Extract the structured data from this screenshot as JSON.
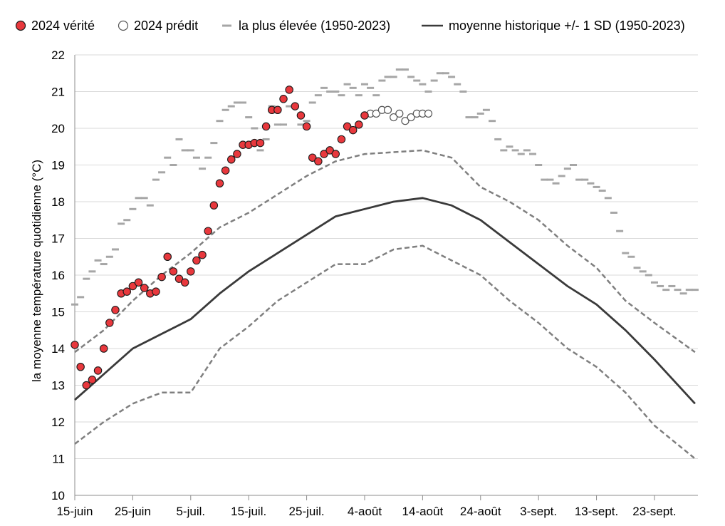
{
  "chart_data": {
    "type": "line",
    "title": "",
    "xlabel": "",
    "ylabel": "la moyenne température quotidienne (°C)",
    "ylim": [
      10,
      22
    ],
    "yticks": [
      10,
      11,
      12,
      13,
      14,
      15,
      16,
      17,
      18,
      19,
      20,
      21,
      22
    ],
    "x_start_date": "2024-06-15",
    "x_end_date": "2024-09-30",
    "x_ticks": [
      {
        "date": "2024-06-15",
        "label": "15-juin"
      },
      {
        "date": "2024-06-25",
        "label": "25-juin"
      },
      {
        "date": "2024-07-05",
        "label": "5-juil."
      },
      {
        "date": "2024-07-15",
        "label": "15-juil."
      },
      {
        "date": "2024-07-25",
        "label": "25-juil."
      },
      {
        "date": "2024-08-04",
        "label": "4-août"
      },
      {
        "date": "2024-08-14",
        "label": "14-août"
      },
      {
        "date": "2024-08-24",
        "label": "24-août"
      },
      {
        "date": "2024-09-03",
        "label": "3-sept."
      },
      {
        "date": "2024-09-13",
        "label": "13-sept."
      },
      {
        "date": "2024-09-23",
        "label": "23-sept."
      }
    ],
    "legend": {
      "position": "top",
      "entries": [
        {
          "key": "truth",
          "label": "2024 vérité"
        },
        {
          "key": "predicted",
          "label": "2024 prédit"
        },
        {
          "key": "highest",
          "label": "la plus élevée (1950-2023)"
        },
        {
          "key": "mean",
          "label": "moyenne historique +/- 1 SD (1950-2023)"
        }
      ]
    },
    "colors": {
      "truth_fill": "#e8383d",
      "truth_edge": "#1a1a1a",
      "predicted_edge": "#555555",
      "highest": "#a6a6a6",
      "mean": "#3a3a3a",
      "sd": "#7f7f7f",
      "grid": "#d9d9d9"
    },
    "series": [
      {
        "key": "truth",
        "name": "2024 vérité",
        "style": "markers-filled",
        "x": [
          "2024-06-15",
          "2024-06-16",
          "2024-06-17",
          "2024-06-18",
          "2024-06-19",
          "2024-06-20",
          "2024-06-21",
          "2024-06-22",
          "2024-06-23",
          "2024-06-24",
          "2024-06-25",
          "2024-06-26",
          "2024-06-27",
          "2024-06-28",
          "2024-06-29",
          "2024-06-30",
          "2024-07-01",
          "2024-07-02",
          "2024-07-03",
          "2024-07-04",
          "2024-07-05",
          "2024-07-06",
          "2024-07-07",
          "2024-07-08",
          "2024-07-09",
          "2024-07-10",
          "2024-07-11",
          "2024-07-12",
          "2024-07-13",
          "2024-07-14",
          "2024-07-15",
          "2024-07-16",
          "2024-07-17",
          "2024-07-18",
          "2024-07-19",
          "2024-07-20",
          "2024-07-21",
          "2024-07-22",
          "2024-07-23",
          "2024-07-24",
          "2024-07-25",
          "2024-07-26",
          "2024-07-27",
          "2024-07-28",
          "2024-07-29",
          "2024-07-30",
          "2024-07-31",
          "2024-08-01",
          "2024-08-02",
          "2024-08-03",
          "2024-08-04"
        ],
        "values": [
          14.1,
          13.5,
          13.0,
          13.15,
          13.4,
          14.0,
          14.7,
          15.05,
          15.5,
          15.55,
          15.7,
          15.8,
          15.65,
          15.5,
          15.55,
          15.95,
          16.5,
          16.1,
          15.9,
          15.8,
          16.1,
          16.4,
          16.55,
          17.2,
          17.9,
          18.5,
          18.85,
          19.15,
          19.3,
          19.55,
          19.55,
          19.6,
          19.6,
          20.05,
          20.5,
          20.5,
          20.8,
          21.05,
          20.6,
          20.35,
          20.05,
          19.2,
          19.1,
          19.3,
          19.4,
          19.3,
          19.7,
          20.05,
          19.95,
          20.1,
          20.35
        ]
      },
      {
        "key": "predicted",
        "name": "2024 prédit",
        "style": "markers-open",
        "x": [
          "2024-08-05",
          "2024-08-06",
          "2024-08-07",
          "2024-08-08",
          "2024-08-09",
          "2024-08-10",
          "2024-08-11",
          "2024-08-12",
          "2024-08-13",
          "2024-08-14",
          "2024-08-15"
        ],
        "values": [
          20.4,
          20.4,
          20.5,
          20.5,
          20.3,
          20.4,
          20.2,
          20.3,
          20.4,
          20.4,
          20.4
        ]
      },
      {
        "key": "highest",
        "name": "la plus élevée (1950-2023)",
        "style": "dashes",
        "x": [
          "2024-06-15",
          "2024-06-16",
          "2024-06-17",
          "2024-06-18",
          "2024-06-19",
          "2024-06-20",
          "2024-06-21",
          "2024-06-22",
          "2024-06-23",
          "2024-06-24",
          "2024-06-25",
          "2024-06-26",
          "2024-06-27",
          "2024-06-28",
          "2024-06-29",
          "2024-06-30",
          "2024-07-01",
          "2024-07-02",
          "2024-07-03",
          "2024-07-04",
          "2024-07-05",
          "2024-07-06",
          "2024-07-07",
          "2024-07-08",
          "2024-07-09",
          "2024-07-10",
          "2024-07-11",
          "2024-07-12",
          "2024-07-13",
          "2024-07-14",
          "2024-07-15",
          "2024-07-16",
          "2024-07-17",
          "2024-07-18",
          "2024-07-19",
          "2024-07-20",
          "2024-07-21",
          "2024-07-22",
          "2024-07-23",
          "2024-07-24",
          "2024-07-25",
          "2024-07-26",
          "2024-07-27",
          "2024-07-28",
          "2024-07-29",
          "2024-07-30",
          "2024-07-31",
          "2024-08-01",
          "2024-08-02",
          "2024-08-03",
          "2024-08-04",
          "2024-08-05",
          "2024-08-06",
          "2024-08-07",
          "2024-08-08",
          "2024-08-09",
          "2024-08-10",
          "2024-08-11",
          "2024-08-12",
          "2024-08-13",
          "2024-08-14",
          "2024-08-15",
          "2024-08-16",
          "2024-08-17",
          "2024-08-18",
          "2024-08-19",
          "2024-08-20",
          "2024-08-21",
          "2024-08-22",
          "2024-08-23",
          "2024-08-24",
          "2024-08-25",
          "2024-08-26",
          "2024-08-27",
          "2024-08-28",
          "2024-08-29",
          "2024-08-30",
          "2024-08-31",
          "2024-09-01",
          "2024-09-02",
          "2024-09-03",
          "2024-09-04",
          "2024-09-05",
          "2024-09-06",
          "2024-09-07",
          "2024-09-08",
          "2024-09-09",
          "2024-09-10",
          "2024-09-11",
          "2024-09-12",
          "2024-09-13",
          "2024-09-14",
          "2024-09-15",
          "2024-09-16",
          "2024-09-17",
          "2024-09-18",
          "2024-09-19",
          "2024-09-20",
          "2024-09-21",
          "2024-09-22",
          "2024-09-23",
          "2024-09-24",
          "2024-09-25",
          "2024-09-26",
          "2024-09-27",
          "2024-09-28",
          "2024-09-29",
          "2024-09-30"
        ],
        "values": [
          15.2,
          15.4,
          15.9,
          16.1,
          16.4,
          16.3,
          16.5,
          16.7,
          17.4,
          17.5,
          17.8,
          18.1,
          18.1,
          17.9,
          18.6,
          18.8,
          19.2,
          19.0,
          19.7,
          19.4,
          19.4,
          19.2,
          18.9,
          19.2,
          19.6,
          20.2,
          20.5,
          20.6,
          20.7,
          20.7,
          20.3,
          20.0,
          19.4,
          19.7,
          20.6,
          20.1,
          20.1,
          20.6,
          20.6,
          20.1,
          20.2,
          20.7,
          20.9,
          21.1,
          21.0,
          21.0,
          20.9,
          21.2,
          21.1,
          20.9,
          21.2,
          21.1,
          20.9,
          21.3,
          21.4,
          21.4,
          21.6,
          21.6,
          21.4,
          21.3,
          21.2,
          21.0,
          21.3,
          21.5,
          21.5,
          21.4,
          21.2,
          21.0,
          20.3,
          20.3,
          20.4,
          20.5,
          20.2,
          19.7,
          19.4,
          19.5,
          19.4,
          19.3,
          19.4,
          19.3,
          19.0,
          18.6,
          18.6,
          18.5,
          18.7,
          18.9,
          19.0,
          18.6,
          18.6,
          18.5,
          18.4,
          18.3,
          18.1,
          17.7,
          17.2,
          16.6,
          16.5,
          16.2,
          16.1,
          16.0,
          15.8,
          15.7,
          15.6,
          15.7,
          15.6,
          15.5,
          15.6,
          15.6
        ]
      },
      {
        "key": "mean",
        "name": "moyenne historique +/- 1 SD (1950-2023)",
        "style": "line-solid",
        "x": [
          "2024-06-15",
          "2024-06-20",
          "2024-06-25",
          "2024-06-30",
          "2024-07-05",
          "2024-07-10",
          "2024-07-15",
          "2024-07-20",
          "2024-07-25",
          "2024-07-30",
          "2024-08-04",
          "2024-08-09",
          "2024-08-14",
          "2024-08-19",
          "2024-08-24",
          "2024-08-29",
          "2024-09-03",
          "2024-09-08",
          "2024-09-13",
          "2024-09-18",
          "2024-09-23",
          "2024-09-30"
        ],
        "values": [
          12.6,
          13.3,
          14.0,
          14.4,
          14.8,
          15.5,
          16.1,
          16.6,
          17.1,
          17.6,
          17.8,
          18.0,
          18.1,
          17.9,
          17.5,
          16.9,
          16.3,
          15.7,
          15.2,
          14.5,
          13.7,
          12.5
        ]
      },
      {
        "key": "sd_upper",
        "name": "",
        "style": "line-dashed",
        "x": [
          "2024-06-15",
          "2024-06-20",
          "2024-06-25",
          "2024-06-30",
          "2024-07-05",
          "2024-07-10",
          "2024-07-15",
          "2024-07-20",
          "2024-07-25",
          "2024-07-30",
          "2024-08-04",
          "2024-08-09",
          "2024-08-14",
          "2024-08-19",
          "2024-08-24",
          "2024-08-29",
          "2024-09-03",
          "2024-09-08",
          "2024-09-13",
          "2024-09-18",
          "2024-09-23",
          "2024-09-30"
        ],
        "values": [
          13.9,
          14.5,
          15.3,
          16.0,
          16.6,
          17.3,
          17.7,
          18.2,
          18.7,
          19.1,
          19.3,
          19.35,
          19.4,
          19.2,
          18.4,
          18.0,
          17.5,
          16.8,
          16.2,
          15.3,
          14.7,
          13.9
        ]
      },
      {
        "key": "sd_lower",
        "name": "",
        "style": "line-dashed",
        "x": [
          "2024-06-15",
          "2024-06-20",
          "2024-06-25",
          "2024-06-30",
          "2024-07-05",
          "2024-07-10",
          "2024-07-15",
          "2024-07-20",
          "2024-07-25",
          "2024-07-30",
          "2024-08-04",
          "2024-08-09",
          "2024-08-14",
          "2024-08-19",
          "2024-08-24",
          "2024-08-29",
          "2024-09-03",
          "2024-09-08",
          "2024-09-13",
          "2024-09-18",
          "2024-09-23",
          "2024-09-30"
        ],
        "values": [
          11.4,
          12.0,
          12.5,
          12.8,
          12.8,
          14.0,
          14.6,
          15.3,
          15.8,
          16.3,
          16.3,
          16.7,
          16.8,
          16.4,
          16.0,
          15.3,
          14.7,
          14.0,
          13.5,
          12.8,
          11.9,
          11.0
        ]
      }
    ]
  }
}
